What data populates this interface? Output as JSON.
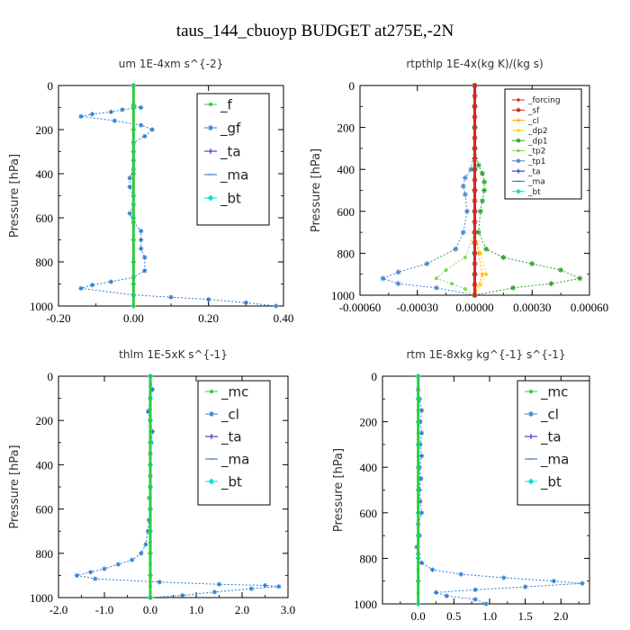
{
  "figure": {
    "title": "taus_144_cbuoyp  BUDGET at275E,-2N"
  },
  "chart_data": [
    {
      "type": "line",
      "title": "um   1E-4xm s^{-2}",
      "ylabel": "Pressure [hPa]",
      "xlim": [
        -0.2,
        0.4
      ],
      "ylim": [
        1000,
        0
      ],
      "xticks": [
        -0.2,
        0.0,
        0.2,
        0.4
      ],
      "xtick_labels": [
        "-0.20",
        "0.00",
        "0.20",
        "0.40"
      ],
      "yticks": [
        0,
        200,
        400,
        600,
        800,
        1000
      ],
      "ytick_labels": [
        "0",
        "200",
        "400",
        "600",
        "800",
        "1000"
      ],
      "legend": "top-right",
      "series": [
        {
          "name": "_f",
          "color": "#2ecc40",
          "marker": "circle",
          "x": [
            0,
            0,
            0,
            0,
            0,
            0,
            0,
            0,
            0,
            0,
            0
          ],
          "y": [
            0,
            100,
            200,
            300,
            400,
            500,
            600,
            700,
            800,
            900,
            1000
          ]
        },
        {
          "name": "_gf",
          "color": "#2d7fd1",
          "marker": "star",
          "x": [
            0,
            0,
            0.02,
            -0.03,
            -0.06,
            -0.11,
            -0.14,
            -0.05,
            0.02,
            0.05,
            0.03,
            0.0,
            0.0,
            0.0,
            0.0,
            -0.01,
            -0.01,
            0.0,
            0.0,
            -0.01,
            0.0,
            0.02,
            0.02,
            0.02,
            0.03,
            0.03,
            0.0,
            -0.06,
            -0.11,
            -0.14,
            0.0,
            0.1,
            0.2,
            0.3,
            0.38
          ],
          "y": [
            0,
            90,
            100,
            110,
            120,
            130,
            140,
            160,
            180,
            200,
            230,
            260,
            300,
            340,
            380,
            420,
            460,
            500,
            540,
            580,
            620,
            660,
            700,
            740,
            780,
            840,
            870,
            890,
            905,
            920,
            950,
            960,
            970,
            985,
            1000
          ]
        },
        {
          "name": "_ta",
          "color": "#1a1acc",
          "marker": "plus",
          "x": [
            0,
            0,
            0,
            0,
            0,
            0,
            0,
            0,
            0,
            0,
            0
          ],
          "y": [
            0,
            100,
            200,
            300,
            400,
            500,
            600,
            700,
            800,
            900,
            1000
          ]
        },
        {
          "name": "_ma",
          "color": "#2b6cb0",
          "marker": "dash",
          "x": [
            0,
            0,
            0,
            0,
            0,
            0,
            0,
            0,
            0,
            0,
            0
          ],
          "y": [
            0,
            100,
            200,
            300,
            400,
            500,
            600,
            700,
            800,
            900,
            1000
          ]
        },
        {
          "name": "_bt",
          "color": "#00e5d4",
          "marker": "diamond",
          "x": [
            0,
            0,
            0,
            0,
            0,
            0,
            0,
            0,
            0,
            0,
            0
          ],
          "y": [
            0,
            100,
            200,
            300,
            400,
            500,
            600,
            700,
            800,
            900,
            1000
          ]
        }
      ]
    },
    {
      "type": "line",
      "title": "rtpthlp   1E-4x(kg K)/(kg s)",
      "ylabel": "Pressure [hPa]",
      "xlim": [
        -0.0006,
        0.0006
      ],
      "ylim": [
        1000,
        0
      ],
      "xticks": [
        -0.0006,
        -0.0003,
        0.0,
        0.0003,
        0.0006
      ],
      "xtick_labels": [
        "-0.00060",
        "-0.00030",
        "0.00000",
        "0.00030",
        "0.00060"
      ],
      "yticks": [
        0,
        200,
        400,
        600,
        800,
        1000
      ],
      "ytick_labels": [
        "0",
        "200",
        "400",
        "600",
        "800",
        "1000"
      ],
      "legend": "top-right",
      "series": [
        {
          "name": "_forcing",
          "color": "#d62728",
          "marker": "circle",
          "x": [
            0,
            0,
            0,
            0,
            0,
            0,
            0,
            0,
            0,
            0,
            0,
            0,
            0,
            0,
            0,
            0,
            0,
            0,
            0,
            0,
            0
          ],
          "y": [
            0,
            50,
            100,
            150,
            200,
            250,
            300,
            350,
            400,
            450,
            500,
            550,
            600,
            650,
            700,
            750,
            800,
            850,
            900,
            950,
            1000
          ]
        },
        {
          "name": "_sf",
          "color": "#cc2200",
          "marker": "star",
          "x": [
            0,
            0,
            0,
            0,
            0,
            0,
            0,
            0,
            0,
            0,
            0,
            0,
            0,
            0,
            0,
            0,
            0,
            0,
            0,
            0,
            0
          ],
          "y": [
            0,
            50,
            100,
            150,
            200,
            250,
            300,
            350,
            400,
            450,
            500,
            550,
            600,
            650,
            700,
            750,
            800,
            850,
            900,
            950,
            1000
          ]
        },
        {
          "name": "_cl",
          "color": "#ff9900",
          "marker": "plus",
          "x": [
            0,
            0,
            0,
            0,
            0,
            0,
            0,
            0,
            2e-05,
            4e-05,
            0
          ],
          "y": [
            0,
            100,
            200,
            300,
            400,
            500,
            600,
            700,
            800,
            900,
            1000
          ]
        },
        {
          "name": "_dp2",
          "color": "#ffd700",
          "marker": "circle",
          "x": [
            0,
            0,
            0,
            0,
            0,
            0,
            0,
            0,
            3e-05,
            6e-05,
            3e-05,
            0
          ],
          "y": [
            0,
            100,
            200,
            300,
            400,
            500,
            600,
            700,
            800,
            900,
            950,
            1000
          ]
        },
        {
          "name": "_dp1",
          "color": "#2ca02c",
          "marker": "star",
          "x": [
            0,
            0,
            0,
            0,
            2e-05,
            4e-05,
            5e-05,
            5e-05,
            4e-05,
            3e-05,
            2e-05,
            6e-05,
            0.00015,
            0.0003,
            0.00045,
            0.00055,
            0.0004,
            0.0002,
            0.0
          ],
          "y": [
            0,
            100,
            200,
            300,
            380,
            420,
            460,
            500,
            550,
            600,
            700,
            780,
            820,
            850,
            880,
            920,
            945,
            965,
            1000
          ]
        },
        {
          "name": "_tp2",
          "color": "#7fdc4c",
          "marker": "circle",
          "x": [
            0,
            0,
            0,
            0,
            0,
            -5e-05,
            -0.00015,
            -0.0002,
            -0.00012,
            -5e-05,
            0
          ],
          "y": [
            0,
            100,
            200,
            300,
            700,
            820,
            880,
            920,
            945,
            970,
            1000
          ]
        },
        {
          "name": "_tp1",
          "color": "#4a86c8",
          "marker": "star",
          "x": [
            0,
            0,
            0,
            0,
            -2e-05,
            -5e-05,
            -6e-05,
            -5e-05,
            -4e-05,
            -6e-05,
            -0.0001,
            -0.00025,
            -0.0004,
            -0.00048,
            -0.0004,
            -0.0002,
            0.0
          ],
          "y": [
            0,
            100,
            200,
            300,
            400,
            440,
            480,
            520,
            600,
            700,
            780,
            850,
            890,
            920,
            945,
            965,
            1000
          ]
        },
        {
          "name": "_ta",
          "color": "#1a1acc",
          "marker": "plus",
          "x": [
            0,
            0,
            0,
            0,
            0,
            0,
            0,
            0,
            0,
            0,
            0
          ],
          "y": [
            0,
            100,
            200,
            300,
            400,
            500,
            600,
            700,
            800,
            900,
            1000
          ]
        },
        {
          "name": "_ma",
          "color": "#2b6cb0",
          "marker": "dash",
          "x": [
            0,
            0,
            0,
            0,
            0,
            0,
            0,
            0,
            0,
            0,
            0
          ],
          "y": [
            0,
            100,
            200,
            300,
            400,
            500,
            600,
            700,
            800,
            900,
            1000
          ]
        },
        {
          "name": "_bt",
          "color": "#00e5d4",
          "marker": "diamond",
          "x": [
            0,
            0,
            0,
            0,
            0,
            0,
            0,
            0,
            0,
            0,
            0
          ],
          "y": [
            0,
            100,
            200,
            300,
            400,
            500,
            600,
            700,
            800,
            900,
            1000
          ]
        }
      ]
    },
    {
      "type": "line",
      "title": "thlm   1E-5xK s^{-1}",
      "ylabel": "Pressure [hPa]",
      "xlim": [
        -2.0,
        3.0
      ],
      "ylim": [
        1000,
        0
      ],
      "xticks": [
        -2.0,
        -1.0,
        0.0,
        1.0,
        2.0,
        3.0
      ],
      "xtick_labels": [
        "-2.0",
        "-1.0",
        "0.0",
        "1.0",
        "2.0",
        "3.0"
      ],
      "yticks": [
        0,
        200,
        400,
        600,
        800,
        1000
      ],
      "ytick_labels": [
        "0",
        "200",
        "400",
        "600",
        "800",
        "1000"
      ],
      "legend": "top-right",
      "series": [
        {
          "name": "_mc",
          "color": "#2ecc40",
          "marker": "circle",
          "x": [
            0,
            0,
            0,
            0,
            0,
            0,
            0,
            0,
            0,
            0,
            0,
            0,
            0,
            0,
            0,
            0,
            0,
            0,
            0,
            0,
            0
          ],
          "y": [
            0,
            50,
            100,
            150,
            200,
            250,
            300,
            350,
            400,
            450,
            500,
            550,
            600,
            650,
            700,
            750,
            800,
            850,
            900,
            950,
            1000
          ]
        },
        {
          "name": "_cl",
          "color": "#2d7fd1",
          "marker": "star",
          "x": [
            0.0,
            0.05,
            0.0,
            -0.05,
            0.0,
            0.05,
            0.02,
            0.0,
            0.0,
            0.0,
            0.0,
            -0.02,
            0.0,
            -0.03,
            -0.05,
            -0.1,
            -0.2,
            -0.4,
            -0.7,
            -1.0,
            -1.3,
            -1.6,
            -1.2,
            0.2,
            1.5,
            2.5,
            2.8,
            2.2,
            1.4,
            0.7,
            0.0
          ],
          "y": [
            0,
            60,
            100,
            160,
            200,
            250,
            300,
            350,
            400,
            450,
            500,
            550,
            600,
            650,
            700,
            760,
            800,
            830,
            850,
            870,
            885,
            900,
            915,
            930,
            940,
            945,
            950,
            960,
            975,
            990,
            1000
          ]
        },
        {
          "name": "_ta",
          "color": "#1a1acc",
          "marker": "plus",
          "x": [
            0,
            0,
            0,
            0,
            0,
            0,
            0,
            0,
            0,
            0,
            0
          ],
          "y": [
            0,
            100,
            200,
            300,
            400,
            500,
            600,
            700,
            800,
            900,
            1000
          ]
        },
        {
          "name": "_ma",
          "color": "#2b6cb0",
          "marker": "dash",
          "x": [
            0,
            0,
            0,
            0,
            0,
            0,
            0,
            0,
            0,
            0,
            0
          ],
          "y": [
            0,
            100,
            200,
            300,
            400,
            500,
            600,
            700,
            800,
            900,
            1000
          ]
        },
        {
          "name": "_bt",
          "color": "#00e5d4",
          "marker": "diamond",
          "x": [
            0,
            0,
            0,
            0,
            0,
            0,
            0,
            0,
            0,
            0,
            0
          ],
          "y": [
            0,
            100,
            200,
            300,
            400,
            500,
            600,
            700,
            800,
            900,
            1000
          ]
        }
      ]
    },
    {
      "type": "line",
      "title": "rtm   1E-8xkg kg^{-1} s^{-1}",
      "ylabel": "Pressure [hPa]",
      "xlim": [
        -0.5,
        2.4
      ],
      "ylim": [
        1000,
        0
      ],
      "xticks": [
        0.0,
        0.5,
        1.0,
        1.5,
        2.0
      ],
      "xtick_labels": [
        "0.0",
        "0.5",
        "1.0",
        "1.5",
        "2.0"
      ],
      "yticks": [
        0,
        200,
        400,
        600,
        800,
        1000
      ],
      "ytick_labels": [
        "0",
        "200",
        "400",
        "600",
        "800",
        "1000"
      ],
      "legend": "top-right",
      "series": [
        {
          "name": "_mc",
          "color": "#2ecc40",
          "marker": "circle",
          "x": [
            0,
            0,
            0,
            0,
            0,
            0,
            0,
            0,
            0,
            0,
            0,
            0,
            0,
            0,
            0,
            0,
            0,
            0,
            0,
            0,
            0
          ],
          "y": [
            0,
            50,
            100,
            150,
            200,
            250,
            300,
            350,
            400,
            450,
            500,
            550,
            600,
            650,
            700,
            750,
            800,
            850,
            900,
            950,
            1000
          ]
        },
        {
          "name": "_cl",
          "color": "#2d7fd1",
          "marker": "star",
          "x": [
            0.0,
            0.0,
            0.02,
            0.05,
            0.03,
            0.05,
            0.03,
            0.05,
            0.02,
            0.04,
            0.02,
            0.03,
            0.05,
            0.0,
            0.02,
            -0.02,
            0.0,
            0.05,
            0.2,
            0.6,
            1.2,
            1.9,
            2.3,
            1.5,
            0.8,
            0.25,
            0.4,
            0.8,
            0.95
          ],
          "y": [
            0,
            60,
            100,
            150,
            200,
            250,
            300,
            350,
            400,
            450,
            500,
            550,
            600,
            650,
            700,
            750,
            780,
            820,
            850,
            870,
            885,
            900,
            910,
            925,
            938,
            950,
            965,
            980,
            1000
          ]
        },
        {
          "name": "_ta",
          "color": "#1a1acc",
          "marker": "plus",
          "x": [
            0,
            0,
            0,
            0,
            0,
            0,
            0,
            0,
            0,
            0,
            0
          ],
          "y": [
            0,
            100,
            200,
            300,
            400,
            500,
            600,
            700,
            800,
            900,
            1000
          ]
        },
        {
          "name": "_ma",
          "color": "#2b6cb0",
          "marker": "dash",
          "x": [
            0,
            0,
            0,
            0,
            0,
            0,
            0,
            0,
            0,
            0,
            0
          ],
          "y": [
            0,
            100,
            200,
            300,
            400,
            500,
            600,
            700,
            800,
            900,
            1000
          ]
        },
        {
          "name": "_bt",
          "color": "#00e5d4",
          "marker": "diamond",
          "x": [
            0,
            0,
            0,
            0,
            0,
            0,
            0,
            0,
            0,
            0,
            0
          ],
          "y": [
            0,
            100,
            200,
            300,
            400,
            500,
            600,
            700,
            800,
            900,
            1000
          ]
        }
      ]
    }
  ]
}
